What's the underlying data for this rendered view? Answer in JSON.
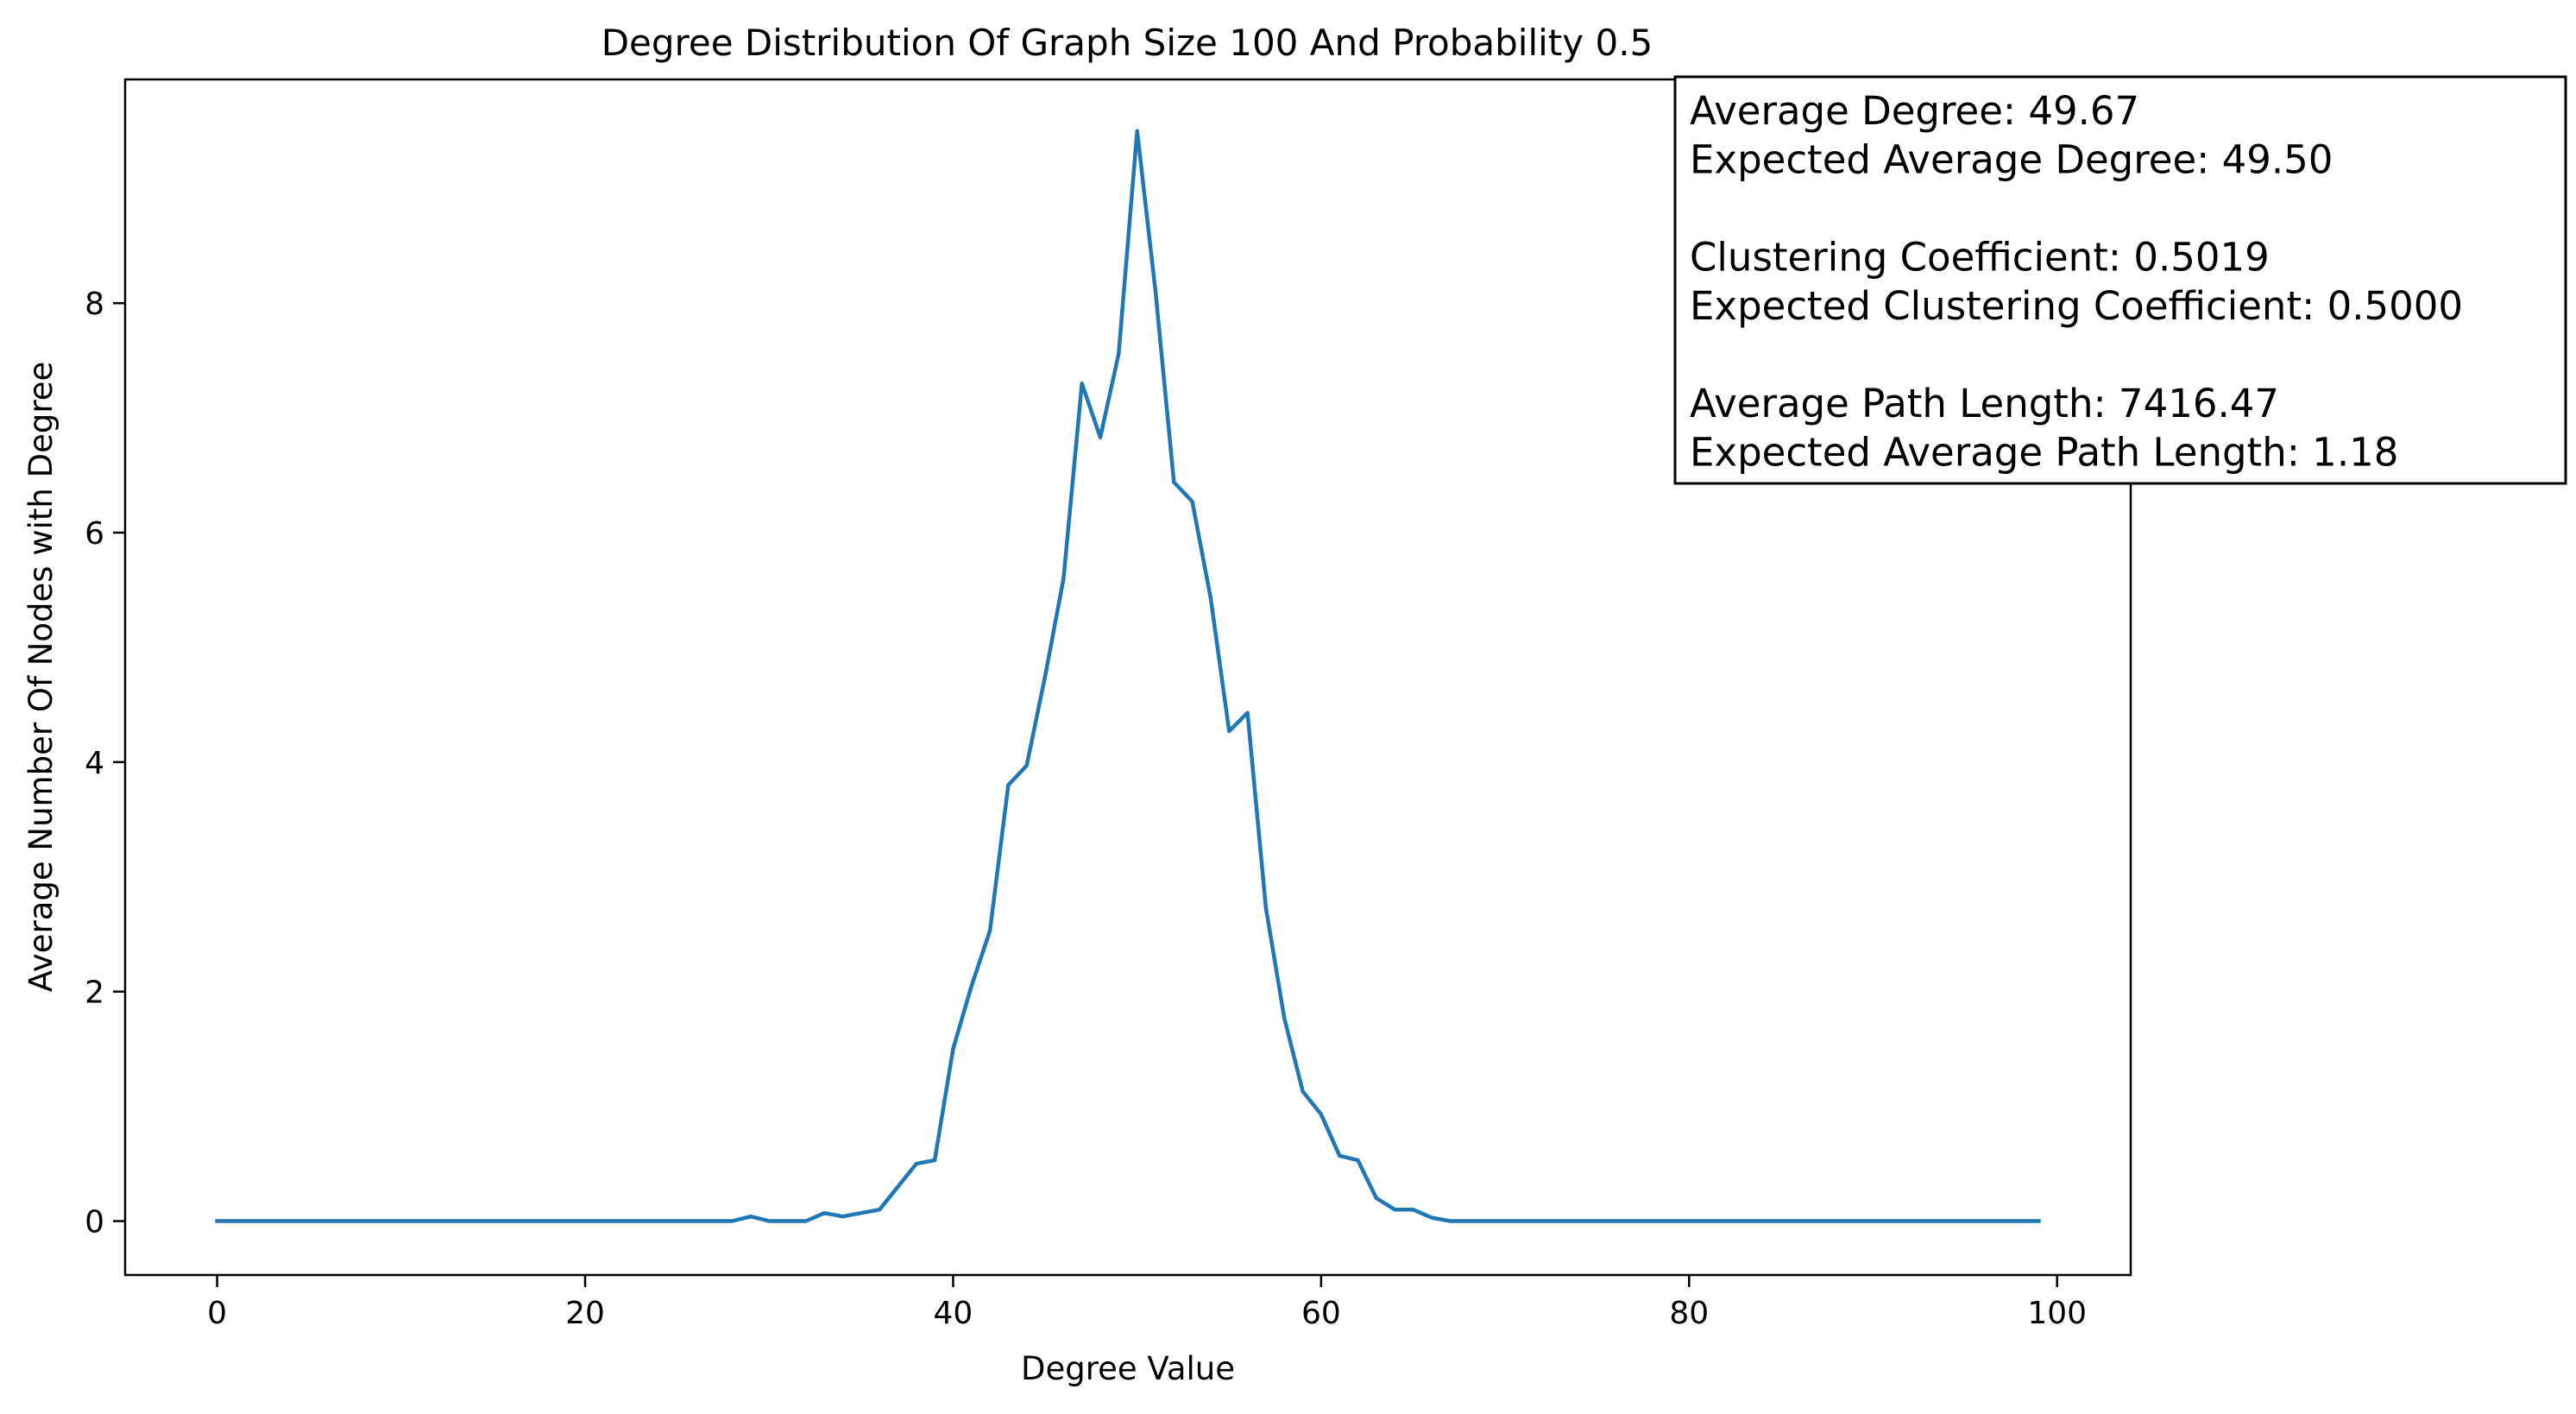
{
  "chart_data": {
    "type": "line",
    "title": "Degree Distribution Of Graph Size 100 And Probability 0.5",
    "xlabel": "Degree Value",
    "ylabel": "Average Number Of Nodes with Degree",
    "xlim": [
      -5,
      104
    ],
    "ylim": [
      -0.47,
      9.95
    ],
    "x_ticks": [
      0,
      20,
      40,
      60,
      80,
      100
    ],
    "y_ticks": [
      0,
      2,
      4,
      6,
      8
    ],
    "grid": false,
    "line_color": "#1f77b4",
    "series": [
      {
        "x": [
          0,
          1,
          2,
          3,
          4,
          5,
          6,
          7,
          8,
          9,
          10,
          11,
          12,
          13,
          14,
          15,
          16,
          17,
          18,
          19,
          20,
          21,
          22,
          23,
          24,
          25,
          26,
          27,
          28,
          29,
          30,
          31,
          32,
          33,
          34,
          35,
          36,
          37,
          38,
          39,
          40,
          41,
          42,
          43,
          44,
          45,
          46,
          47,
          48,
          49,
          50,
          51,
          52,
          53,
          54,
          55,
          56,
          57,
          58,
          59,
          60,
          61,
          62,
          63,
          64,
          65,
          66,
          67,
          68,
          69,
          70,
          71,
          72,
          73,
          74,
          75,
          76,
          77,
          78,
          79,
          80,
          81,
          82,
          83,
          84,
          85,
          86,
          87,
          88,
          89,
          90,
          91,
          92,
          93,
          94,
          95,
          96,
          97,
          98,
          99
        ],
        "y": [
          0,
          0,
          0,
          0,
          0,
          0,
          0,
          0,
          0,
          0,
          0,
          0,
          0,
          0,
          0,
          0,
          0,
          0,
          0,
          0,
          0,
          0,
          0,
          0,
          0,
          0,
          0,
          0,
          0,
          0.04,
          0,
          0,
          0,
          0.07,
          0.04,
          0.07,
          0.1,
          0.3,
          0.5,
          0.53,
          1.5,
          2.05,
          2.53,
          3.8,
          3.97,
          4.75,
          5.6,
          7.3,
          6.83,
          7.56,
          9.5,
          8.1,
          6.44,
          6.27,
          5.43,
          4.27,
          4.43,
          2.73,
          1.77,
          1.13,
          0.93,
          0.57,
          0.53,
          0.2,
          0.1,
          0.1,
          0.03,
          0,
          0,
          0,
          0,
          0,
          0,
          0,
          0,
          0,
          0,
          0,
          0,
          0,
          0,
          0,
          0,
          0,
          0,
          0,
          0,
          0,
          0,
          0,
          0,
          0,
          0,
          0,
          0,
          0,
          0,
          0,
          0,
          0
        ]
      }
    ],
    "annotation": {
      "lines": [
        "Average Degree: 49.67",
        "Expected Average Degree: 49.50",
        "",
        "Clustering Coefficient: 0.5019",
        "Expected Clustering Coefficient: 0.5000",
        "",
        "Average Path Length: 7416.47",
        "Expected Average Path Length: 1.18"
      ]
    }
  }
}
